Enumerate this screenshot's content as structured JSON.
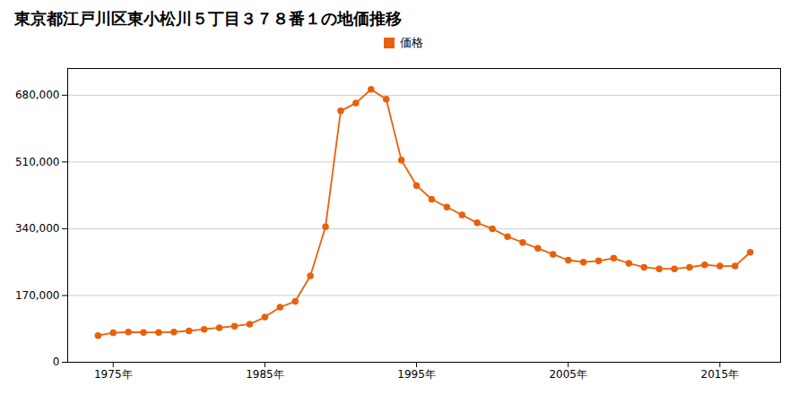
{
  "chart_data": {
    "type": "line",
    "title": "東京都江戸川区東小松川５丁目３７８番１の地価推移",
    "x": [
      1974,
      1975,
      1976,
      1977,
      1978,
      1979,
      1980,
      1981,
      1982,
      1983,
      1984,
      1985,
      1986,
      1987,
      1988,
      1989,
      1990,
      1991,
      1992,
      1993,
      1994,
      1995,
      1996,
      1997,
      1998,
      1999,
      2000,
      2001,
      2002,
      2003,
      2004,
      2005,
      2006,
      2007,
      2008,
      2009,
      2010,
      2011,
      2012,
      2013,
      2014,
      2015,
      2016,
      2017
    ],
    "series": [
      {
        "name": "価格",
        "color": "#E8610A",
        "marker": "circle",
        "values": [
          68000,
          75000,
          77000,
          76000,
          76000,
          77000,
          80000,
          84000,
          88000,
          92000,
          97000,
          115000,
          140000,
          155000,
          220000,
          345000,
          640000,
          660000,
          695000,
          670000,
          515000,
          450000,
          415000,
          395000,
          375000,
          355000,
          340000,
          320000,
          305000,
          290000,
          275000,
          260000,
          255000,
          258000,
          265000,
          252000,
          242000,
          238000,
          238000,
          242000,
          248000,
          245000,
          245000,
          280000
        ]
      }
    ],
    "xlim": [
      1972,
      2019
    ],
    "xticks": [
      {
        "value": 1975,
        "label": "1975年"
      },
      {
        "value": 1985,
        "label": "1985年"
      },
      {
        "value": 1995,
        "label": "1995年"
      },
      {
        "value": 2005,
        "label": "2005年"
      },
      {
        "value": 2015,
        "label": "2015年"
      }
    ],
    "ylim": [
      0,
      748000
    ],
    "yticks": [
      0,
      {
        "value": 170000,
        "label": "170,000"
      },
      {
        "value": 340000,
        "label": "340,000"
      },
      {
        "value": 510000,
        "label": "510,000"
      },
      {
        "value": 680000,
        "label": "680,000"
      }
    ],
    "grid": true,
    "legend": "top"
  }
}
